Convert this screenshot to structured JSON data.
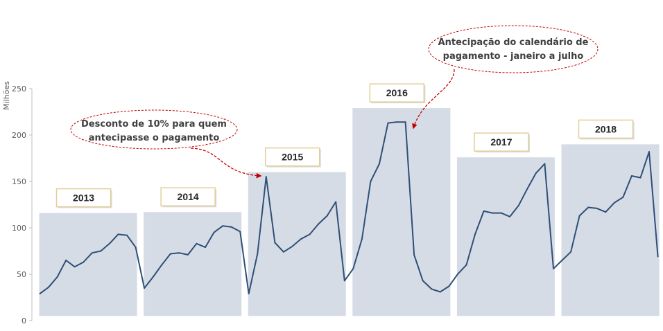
{
  "chart_data": {
    "type": "line",
    "ylabel": "Milhões",
    "ylim": [
      0,
      250
    ],
    "yticks": [
      0,
      50,
      100,
      150,
      200,
      250
    ],
    "grid": false,
    "colors": {
      "line": "#2e4f77",
      "band": "#d6dce6",
      "box_border": "#e3cf9a",
      "annotation": "#c00000"
    },
    "series": [
      {
        "values": [
          29,
          36,
          47,
          65,
          58,
          63,
          73,
          75,
          83,
          93,
          92,
          79,
          35,
          47,
          60,
          72,
          73,
          71,
          83,
          79,
          95,
          102,
          101,
          96,
          29,
          72,
          155,
          84,
          74,
          80,
          88,
          93,
          104,
          113,
          128,
          43,
          56,
          88,
          150,
          169,
          213,
          214,
          214,
          71,
          43,
          34,
          31,
          37,
          50,
          60,
          93,
          118,
          116,
          116,
          112,
          124,
          142,
          159,
          169,
          56,
          65,
          74,
          113,
          122,
          121,
          117,
          127,
          133,
          156,
          154,
          182,
          69
        ]
      }
    ],
    "years": [
      {
        "label": "2013",
        "band_top": 116
      },
      {
        "label": "2014",
        "band_top": 117
      },
      {
        "label": "2015",
        "band_top": 160
      },
      {
        "label": "2016",
        "band_top": 229
      },
      {
        "label": "2017",
        "band_top": 176
      },
      {
        "label": "2018",
        "band_top": 190
      }
    ],
    "annotations": [
      {
        "lines": [
          "Desconto de 10% para quem",
          "antecipasse o pagamento"
        ],
        "point_index": 26
      },
      {
        "lines": [
          "Antecipação do calendário de",
          "pagamento - janeiro a julho"
        ],
        "point_index": 42
      }
    ]
  }
}
